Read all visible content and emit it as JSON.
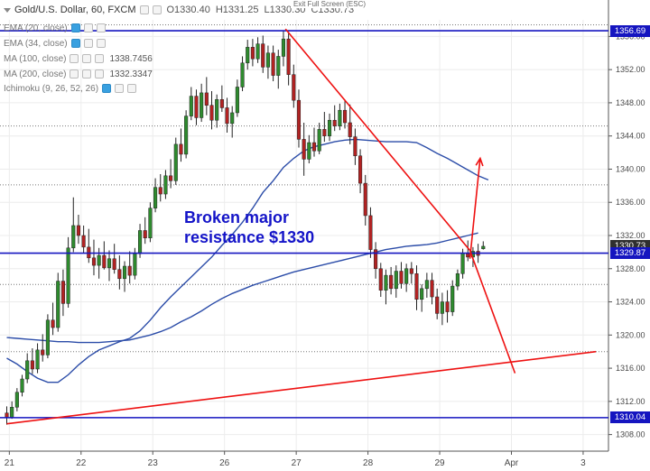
{
  "header": {
    "symbol": "Gold/U.S. Dollar, 60, FXCM",
    "open": "O1330.40",
    "high": "H1331.25",
    "low": "L1330.30",
    "close": "C1330.73",
    "exit_full_screen": "Exit Full Screen (ESC)"
  },
  "indicators": [
    {
      "label": "EMA (20, close)",
      "value": ""
    },
    {
      "label": "EMA (34, close)",
      "value": ""
    },
    {
      "label": "MA (100, close)",
      "value": "1338.7456"
    },
    {
      "label": "MA (200, close)",
      "value": "1332.3347"
    },
    {
      "label": "Ichimoku (9, 26, 52, 26)",
      "value": ""
    }
  ],
  "annotation": {
    "line1": "Broken major",
    "line2": "resistance $1330"
  },
  "price_tags": [
    {
      "label": "1356.69",
      "value": 1356.69,
      "color": "#1515c0"
    },
    {
      "label": "1330.73",
      "value": 1330.73,
      "color": "#2f2f2f"
    },
    {
      "label": "1329.87",
      "value": 1329.87,
      "color": "#1515c0"
    },
    {
      "label": "1310.04",
      "value": 1310.04,
      "color": "#1515c0"
    }
  ],
  "colors": {
    "up_candle": "#2e8b2e",
    "down_candle": "#b22222",
    "ma_line": "#2b4ca8",
    "trendline": "#ee1111",
    "horizontal_level": "#1515c0"
  },
  "chart_data": {
    "type": "candlestick",
    "title": "Gold/U.S. Dollar, 60, FXCM",
    "x_ticks": [
      {
        "label": "21",
        "pos": 0.25
      },
      {
        "label": "22",
        "pos": 7.25
      },
      {
        "label": "23",
        "pos": 14.25
      },
      {
        "label": "26",
        "pos": 21.25
      },
      {
        "label": "27",
        "pos": 28.25
      },
      {
        "label": "28",
        "pos": 35.25
      },
      {
        "label": "29",
        "pos": 42.25
      },
      {
        "label": "Apr",
        "pos": 49.25
      },
      {
        "label": "3",
        "pos": 56.25
      }
    ],
    "y_ticks": [
      1308,
      1312,
      1316,
      1320,
      1324,
      1328,
      1332,
      1336,
      1340,
      1344,
      1348,
      1352,
      1356
    ],
    "ylim": [
      1306,
      1358
    ],
    "xlim": [
      0,
      57.5
    ],
    "candles": [
      [
        0.0,
        1310.6,
        1311.4,
        1309.2,
        1310.1
      ],
      [
        0.5,
        1310.1,
        1312.0,
        1309.9,
        1311.3
      ],
      [
        1.0,
        1311.3,
        1313.6,
        1310.8,
        1313.1
      ],
      [
        1.5,
        1313.1,
        1315.2,
        1312.6,
        1314.7
      ],
      [
        2.0,
        1314.7,
        1317.8,
        1314.2,
        1316.9
      ],
      [
        2.5,
        1316.9,
        1318.4,
        1315.3,
        1315.9
      ],
      [
        3.0,
        1315.9,
        1319.0,
        1315.4,
        1318.2
      ],
      [
        3.5,
        1318.2,
        1320.1,
        1316.8,
        1317.6
      ],
      [
        4.0,
        1317.6,
        1322.5,
        1317.2,
        1321.8
      ],
      [
        4.5,
        1321.8,
        1323.9,
        1320.0,
        1320.9
      ],
      [
        5.0,
        1320.9,
        1327.5,
        1320.4,
        1326.5
      ],
      [
        5.5,
        1326.5,
        1327.9,
        1322.3,
        1323.8
      ],
      [
        6.0,
        1323.8,
        1331.8,
        1323.3,
        1330.5
      ],
      [
        6.5,
        1330.5,
        1336.6,
        1330.0,
        1333.2
      ],
      [
        7.0,
        1333.2,
        1334.5,
        1331.0,
        1332.0
      ],
      [
        7.5,
        1332.0,
        1333.2,
        1329.9,
        1330.6
      ],
      [
        8.0,
        1330.6,
        1332.8,
        1328.7,
        1329.3
      ],
      [
        8.5,
        1329.3,
        1331.5,
        1327.2,
        1328.4
      ],
      [
        9.0,
        1328.4,
        1330.5,
        1326.8,
        1329.6
      ],
      [
        9.5,
        1329.6,
        1331.3,
        1327.9,
        1328.1
      ],
      [
        10.0,
        1328.1,
        1330.2,
        1326.5,
        1329.2
      ],
      [
        10.5,
        1329.2,
        1331.0,
        1327.4,
        1327.9
      ],
      [
        11.0,
        1327.9,
        1329.6,
        1325.5,
        1326.8
      ],
      [
        11.5,
        1326.8,
        1328.9,
        1325.2,
        1328.3
      ],
      [
        12.0,
        1328.3,
        1330.1,
        1326.2,
        1327.2
      ],
      [
        12.5,
        1327.2,
        1330.5,
        1326.7,
        1329.8
      ],
      [
        13.0,
        1329.8,
        1333.4,
        1329.3,
        1332.6
      ],
      [
        13.5,
        1332.6,
        1334.2,
        1331.0,
        1331.7
      ],
      [
        14.0,
        1331.7,
        1336.0,
        1331.2,
        1335.3
      ],
      [
        14.5,
        1335.3,
        1338.9,
        1334.8,
        1337.8
      ],
      [
        15.0,
        1337.8,
        1339.4,
        1336.1,
        1337.0
      ],
      [
        15.5,
        1337.0,
        1339.9,
        1336.4,
        1339.2
      ],
      [
        16.0,
        1339.2,
        1341.2,
        1337.7,
        1338.6
      ],
      [
        16.5,
        1338.6,
        1343.8,
        1338.1,
        1343.0
      ],
      [
        17.0,
        1343.0,
        1344.9,
        1340.9,
        1341.8
      ],
      [
        17.5,
        1341.8,
        1347.1,
        1341.3,
        1346.4
      ],
      [
        18.0,
        1346.4,
        1349.9,
        1345.9,
        1348.8
      ],
      [
        18.5,
        1348.8,
        1349.6,
        1345.3,
        1346.2
      ],
      [
        19.0,
        1346.2,
        1350.3,
        1345.7,
        1349.2
      ],
      [
        19.5,
        1349.2,
        1351.1,
        1346.5,
        1347.7
      ],
      [
        20.0,
        1347.7,
        1349.4,
        1344.8,
        1345.9
      ],
      [
        20.5,
        1345.9,
        1349.0,
        1345.0,
        1348.4
      ],
      [
        21.0,
        1348.4,
        1350.1,
        1346.9,
        1347.4
      ],
      [
        21.5,
        1347.4,
        1348.6,
        1344.4,
        1345.5
      ],
      [
        22.0,
        1345.5,
        1347.6,
        1343.8,
        1346.8
      ],
      [
        22.5,
        1346.8,
        1350.8,
        1346.3,
        1349.9
      ],
      [
        23.0,
        1349.9,
        1353.6,
        1349.4,
        1352.8
      ],
      [
        23.5,
        1352.8,
        1355.6,
        1352.0,
        1354.7
      ],
      [
        24.0,
        1354.7,
        1355.7,
        1352.4,
        1353.3
      ],
      [
        24.5,
        1353.3,
        1355.9,
        1352.8,
        1355.1
      ],
      [
        25.0,
        1355.1,
        1356.1,
        1351.6,
        1352.3
      ],
      [
        25.5,
        1352.3,
        1354.9,
        1350.9,
        1354.0
      ],
      [
        26.0,
        1354.0,
        1354.9,
        1350.6,
        1351.3
      ],
      [
        26.5,
        1351.3,
        1354.4,
        1349.7,
        1353.6
      ],
      [
        27.0,
        1353.6,
        1356.7,
        1352.4,
        1355.7
      ],
      [
        27.5,
        1355.7,
        1356.4,
        1350.1,
        1351.4
      ],
      [
        28.0,
        1351.4,
        1352.6,
        1347.4,
        1348.3
      ],
      [
        28.5,
        1348.3,
        1349.6,
        1342.6,
        1343.6
      ],
      [
        29.0,
        1343.6,
        1345.6,
        1339.2,
        1341.2
      ],
      [
        29.5,
        1341.2,
        1344.1,
        1340.7,
        1343.2
      ],
      [
        30.0,
        1343.2,
        1345.0,
        1341.5,
        1342.2
      ],
      [
        30.5,
        1342.2,
        1345.6,
        1341.8,
        1344.8
      ],
      [
        31.0,
        1344.8,
        1346.9,
        1343.3,
        1344.0
      ],
      [
        31.5,
        1344.0,
        1346.7,
        1343.4,
        1345.9
      ],
      [
        32.0,
        1345.9,
        1347.7,
        1344.6,
        1345.2
      ],
      [
        32.5,
        1345.2,
        1347.9,
        1344.7,
        1347.1
      ],
      [
        33.0,
        1347.1,
        1348.2,
        1344.9,
        1345.6
      ],
      [
        33.5,
        1345.6,
        1347.8,
        1343.0,
        1343.9
      ],
      [
        34.0,
        1343.9,
        1344.9,
        1340.5,
        1341.6
      ],
      [
        34.5,
        1341.6,
        1342.4,
        1337.1,
        1338.3
      ],
      [
        35.0,
        1338.3,
        1339.3,
        1333.2,
        1334.4
      ],
      [
        35.5,
        1334.4,
        1335.4,
        1329.3,
        1330.3
      ],
      [
        36.0,
        1330.3,
        1331.2,
        1326.8,
        1328.0
      ],
      [
        36.5,
        1328.0,
        1328.7,
        1324.6,
        1325.4
      ],
      [
        37.0,
        1325.4,
        1327.9,
        1323.7,
        1327.2
      ],
      [
        37.5,
        1327.2,
        1328.2,
        1324.9,
        1325.6
      ],
      [
        38.0,
        1325.6,
        1328.4,
        1324.5,
        1327.7
      ],
      [
        38.5,
        1327.7,
        1328.8,
        1325.6,
        1326.2
      ],
      [
        39.0,
        1326.2,
        1328.6,
        1325.2,
        1328.0
      ],
      [
        39.5,
        1328.0,
        1328.8,
        1326.2,
        1327.4
      ],
      [
        40.0,
        1327.4,
        1328.4,
        1323.0,
        1324.3
      ],
      [
        40.5,
        1324.3,
        1326.1,
        1322.8,
        1325.6
      ],
      [
        41.0,
        1325.6,
        1327.5,
        1324.5,
        1326.6
      ],
      [
        41.5,
        1326.6,
        1327.5,
        1323.7,
        1324.6
      ],
      [
        42.0,
        1324.6,
        1325.6,
        1321.9,
        1322.6
      ],
      [
        42.5,
        1322.6,
        1325.1,
        1321.2,
        1324.0
      ],
      [
        43.0,
        1324.0,
        1325.4,
        1321.5,
        1322.8
      ],
      [
        43.5,
        1322.8,
        1326.6,
        1322.3,
        1325.9
      ],
      [
        44.0,
        1325.9,
        1327.9,
        1325.4,
        1327.4
      ],
      [
        44.5,
        1327.4,
        1330.4,
        1326.8,
        1329.9
      ],
      [
        45.0,
        1329.9,
        1331.4,
        1328.9,
        1329.4
      ],
      [
        45.5,
        1329.4,
        1330.6,
        1328.2,
        1330.1
      ],
      [
        46.0,
        1330.1,
        1331.0,
        1328.7,
        1329.6
      ],
      [
        46.5,
        1330.4,
        1331.3,
        1330.3,
        1330.7
      ]
    ],
    "ma100": [
      [
        0,
        1317.2
      ],
      [
        1,
        1316.5
      ],
      [
        2,
        1315.6
      ],
      [
        3,
        1314.8
      ],
      [
        4,
        1314.3
      ],
      [
        5,
        1314.3
      ],
      [
        6,
        1315.2
      ],
      [
        7,
        1316.4
      ],
      [
        8,
        1317.4
      ],
      [
        9,
        1318.2
      ],
      [
        10,
        1318.7
      ],
      [
        11,
        1319.2
      ],
      [
        12,
        1319.6
      ],
      [
        13,
        1320.5
      ],
      [
        14,
        1321.8
      ],
      [
        15,
        1323.3
      ],
      [
        16,
        1324.6
      ],
      [
        17,
        1325.8
      ],
      [
        18,
        1327.0
      ],
      [
        19,
        1328.2
      ],
      [
        20,
        1329.4
      ],
      [
        21,
        1330.8
      ],
      [
        22,
        1332.1
      ],
      [
        23,
        1333.6
      ],
      [
        24,
        1335.3
      ],
      [
        25,
        1337.2
      ],
      [
        26,
        1338.6
      ],
      [
        27,
        1340.2
      ],
      [
        28,
        1341.3
      ],
      [
        29,
        1342.2
      ],
      [
        30,
        1342.7
      ],
      [
        31,
        1343.0
      ],
      [
        32,
        1343.3
      ],
      [
        33,
        1343.5
      ],
      [
        34,
        1343.6
      ],
      [
        35,
        1343.5
      ],
      [
        36,
        1343.4
      ],
      [
        37,
        1343.3
      ],
      [
        38,
        1343.3
      ],
      [
        39,
        1343.3
      ],
      [
        40,
        1343.2
      ],
      [
        41,
        1342.6
      ],
      [
        42,
        1341.9
      ],
      [
        43,
        1341.3
      ],
      [
        44,
        1340.6
      ],
      [
        45,
        1339.9
      ],
      [
        46,
        1339.2
      ],
      [
        47,
        1338.7
      ]
    ],
    "ma200": [
      [
        0,
        1319.7
      ],
      [
        1,
        1319.6
      ],
      [
        2,
        1319.5
      ],
      [
        3,
        1319.4
      ],
      [
        4,
        1319.3
      ],
      [
        5,
        1319.2
      ],
      [
        6,
        1319.2
      ],
      [
        7,
        1319.1
      ],
      [
        8,
        1319.1
      ],
      [
        9,
        1319.1
      ],
      [
        10,
        1319.2
      ],
      [
        11,
        1319.3
      ],
      [
        12,
        1319.4
      ],
      [
        13,
        1319.7
      ],
      [
        14,
        1320.0
      ],
      [
        15,
        1320.4
      ],
      [
        16,
        1320.9
      ],
      [
        17,
        1321.6
      ],
      [
        18,
        1322.2
      ],
      [
        19,
        1322.9
      ],
      [
        20,
        1323.7
      ],
      [
        21,
        1324.4
      ],
      [
        22,
        1325.0
      ],
      [
        23,
        1325.5
      ],
      [
        24,
        1326.0
      ],
      [
        25,
        1326.4
      ],
      [
        26,
        1326.8
      ],
      [
        27,
        1327.2
      ],
      [
        28,
        1327.6
      ],
      [
        29,
        1327.9
      ],
      [
        30,
        1328.2
      ],
      [
        31,
        1328.5
      ],
      [
        32,
        1328.8
      ],
      [
        33,
        1329.1
      ],
      [
        34,
        1329.4
      ],
      [
        35,
        1329.7
      ],
      [
        36,
        1330.0
      ],
      [
        37,
        1330.3
      ],
      [
        38,
        1330.5
      ],
      [
        39,
        1330.7
      ],
      [
        40,
        1330.8
      ],
      [
        41,
        1330.9
      ],
      [
        42,
        1331.1
      ],
      [
        43,
        1331.4
      ],
      [
        44,
        1331.7
      ],
      [
        45,
        1332.0
      ],
      [
        46,
        1332.3
      ]
    ],
    "trendlines": [
      {
        "from": [
          27.2,
          1356.9
        ],
        "to": [
          45.2,
          1330.2
        ]
      },
      {
        "from": [
          45.2,
          1330.2
        ],
        "to": [
          49.6,
          1315.4
        ]
      },
      {
        "from": [
          0.0,
          1309.3
        ],
        "to": [
          57.5,
          1318.0
        ]
      },
      {
        "from": [
          45.2,
          1329.2
        ],
        "to": [
          46.2,
          1341.3
        ],
        "arrow": true
      }
    ],
    "horizontal_levels": [
      1356.69,
      1329.87,
      1310.04
    ],
    "dotted_levels": [
      1357.4,
      1345.2,
      1338.1,
      1326.1,
      1318.0
    ],
    "grid": true
  }
}
